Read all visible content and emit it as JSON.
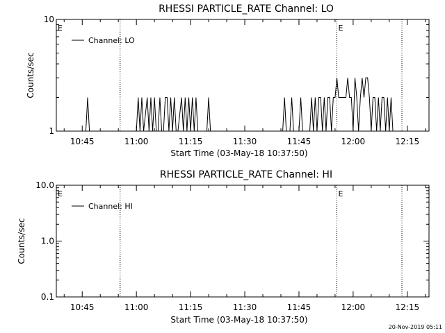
{
  "timestamp": "20-Nov-2019 05:11",
  "chart_data": [
    {
      "type": "line",
      "title": "RHESSI PARTICLE_RATE Channel: LO",
      "xlabel": "Start Time (03-May-18 10:37:50)",
      "ylabel": "Counts/sec",
      "yscale": "log",
      "ylim": [
        1,
        10
      ],
      "ytick_labels": [
        "1",
        "10"
      ],
      "ytick_values": [
        1,
        10
      ],
      "xlim": [
        "10:37:50",
        "12:21:00"
      ],
      "xtick_labels": [
        "10:45",
        "11:00",
        "11:15",
        "11:30",
        "11:45",
        "12:00",
        "12:15"
      ],
      "xtick_values": [
        "10:45",
        "11:00",
        "11:15",
        "11:30",
        "11:45",
        "12:00",
        "12:15"
      ],
      "legend": {
        "position": "top-left",
        "entries": [
          "Channel: LO"
        ]
      },
      "markers": [
        {
          "label": "E",
          "time": "10:37:50"
        },
        {
          "label": "E",
          "time": "11:55:30"
        }
      ],
      "vlines": [
        "10:55:30",
        "11:55:30",
        "12:13:30"
      ],
      "series": [
        {
          "name": "Channel: LO",
          "x": [
            "10:37:50",
            "10:46:00",
            "10:46:30",
            "10:47:00",
            "11:00:00",
            "11:00:30",
            "11:01:00",
            "11:01:30",
            "11:02:00",
            "11:03:00",
            "11:03:30",
            "11:04:00",
            "11:04:30",
            "11:05:00",
            "11:05:30",
            "11:06:00",
            "11:06:30",
            "11:07:00",
            "11:07:30",
            "11:08:00",
            "11:08:30",
            "11:09:00",
            "11:09:30",
            "11:10:00",
            "11:10:30",
            "11:11:00",
            "11:11:30",
            "11:12:30",
            "11:13:00",
            "11:13:30",
            "11:14:00",
            "11:14:30",
            "11:15:00",
            "11:15:30",
            "11:16:00",
            "11:16:30",
            "11:17:00",
            "11:17:30",
            "11:18:00",
            "11:19:30",
            "11:20:00",
            "11:20:30",
            "11:40:30",
            "11:41:00",
            "11:41:30",
            "11:42:30",
            "11:43:00",
            "11:43:30",
            "11:45:00",
            "11:45:30",
            "11:46:00",
            "11:48:00",
            "11:48:30",
            "11:49:00",
            "11:49:30",
            "11:50:00",
            "11:50:30",
            "11:51:00",
            "11:51:30",
            "11:52:00",
            "11:52:30",
            "11:53:00",
            "11:53:30",
            "11:54:00",
            "11:54:30",
            "11:55:00",
            "11:55:30",
            "11:56:00",
            "11:56:30",
            "11:57:00",
            "11:57:30",
            "11:58:00",
            "11:58:30",
            "11:59:00",
            "11:59:30",
            "12:00:00",
            "12:00:30",
            "12:01:00",
            "12:01:30",
            "12:02:00",
            "12:02:30",
            "12:03:00",
            "12:03:30",
            "12:04:00",
            "12:04:30",
            "12:05:00",
            "12:05:30",
            "12:06:00",
            "12:06:30",
            "12:07:00",
            "12:07:30",
            "12:08:00",
            "12:08:30",
            "12:09:00",
            "12:09:30",
            "12:10:00",
            "12:10:30",
            "12:11:00"
          ],
          "y": [
            1,
            1,
            2,
            1,
            1,
            2,
            1,
            2,
            1,
            2,
            1,
            2,
            1,
            2,
            1,
            1,
            2,
            1,
            1,
            2,
            2,
            1,
            2,
            1,
            2,
            1,
            1,
            2,
            1,
            2,
            1,
            2,
            1,
            2,
            1,
            2,
            1,
            1,
            1,
            1,
            2,
            1,
            1,
            2,
            1,
            1,
            2,
            1,
            1,
            2,
            1,
            1,
            2,
            1,
            2,
            1,
            2,
            2,
            1,
            2,
            1,
            2,
            2,
            1,
            2,
            2,
            3,
            2,
            2,
            2,
            2,
            2,
            3,
            2,
            2,
            1,
            3,
            2,
            1,
            2,
            3,
            2,
            3,
            3,
            2,
            1,
            2,
            2,
            1,
            2,
            1,
            2,
            2,
            1,
            2,
            1,
            2,
            1
          ]
        }
      ]
    },
    {
      "type": "line",
      "title": "RHESSI PARTICLE_RATE Channel: HI",
      "xlabel": "Start Time (03-May-18 10:37:50)",
      "ylabel": "Counts/sec",
      "yscale": "log",
      "ylim": [
        0.1,
        10
      ],
      "ytick_labels": [
        "0.1",
        "1.0",
        "10.0"
      ],
      "ytick_values": [
        0.1,
        1,
        10
      ],
      "xlim": [
        "10:37:50",
        "12:21:00"
      ],
      "xtick_labels": [
        "10:45",
        "11:00",
        "11:15",
        "11:30",
        "11:45",
        "12:00",
        "12:15"
      ],
      "xtick_values": [
        "10:45",
        "11:00",
        "11:15",
        "11:30",
        "11:45",
        "12:00",
        "12:15"
      ],
      "legend": {
        "position": "top-left",
        "entries": [
          "Channel: HI"
        ]
      },
      "markers": [
        {
          "label": "E",
          "time": "10:37:50"
        },
        {
          "label": "E",
          "time": "11:55:30"
        }
      ],
      "vlines": [
        "10:55:30",
        "11:55:30",
        "12:13:30"
      ],
      "series": [
        {
          "name": "Channel: HI",
          "x": [],
          "y": []
        }
      ]
    }
  ]
}
